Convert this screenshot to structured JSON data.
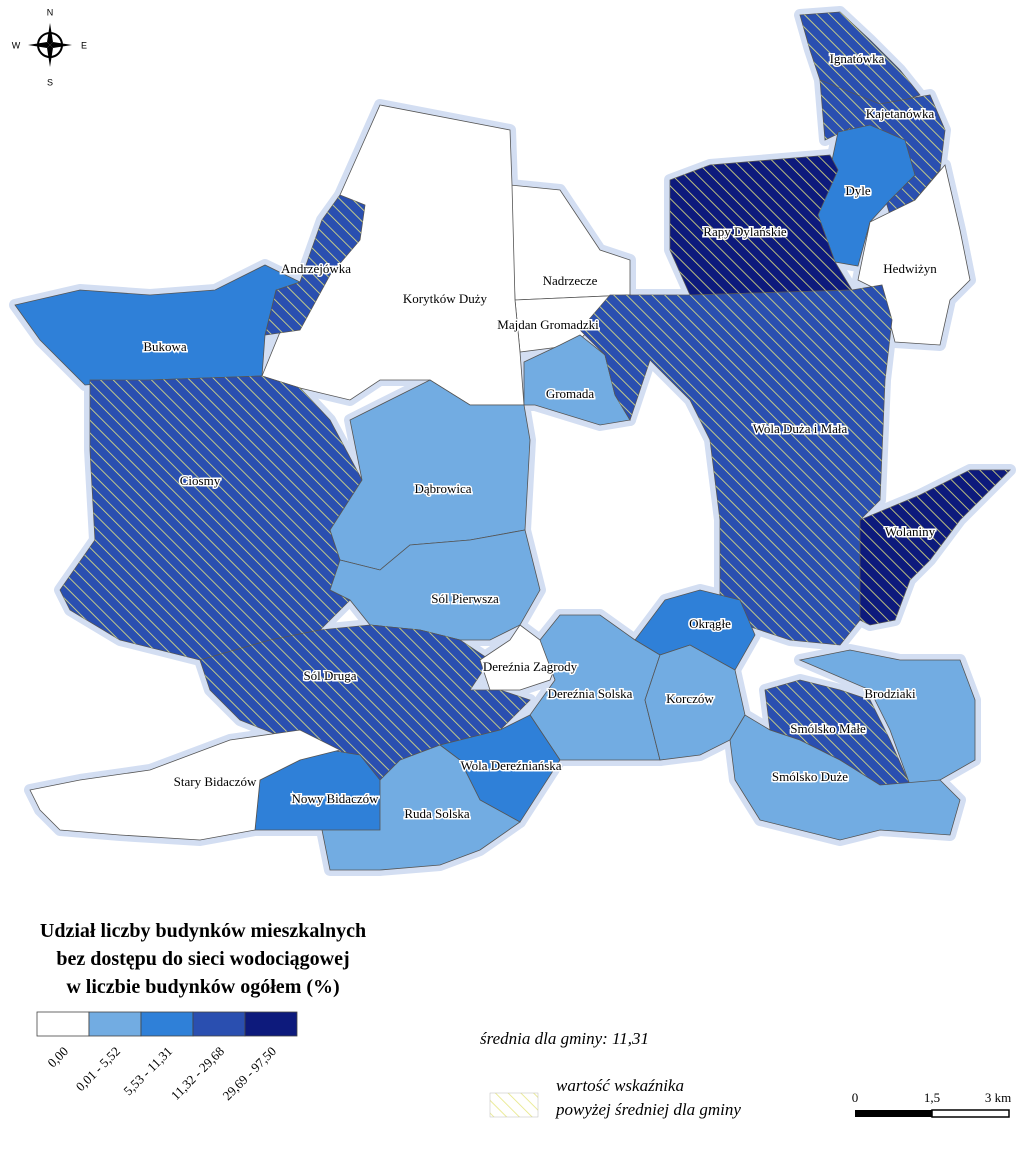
{
  "compass": {
    "north": "N",
    "south": "S",
    "west": "W",
    "east": "E"
  },
  "regions": [
    {
      "name": "Ignatówka",
      "color": "#2a4fb0",
      "hatched": true
    },
    {
      "name": "Kajetanówka",
      "color": "#2a4fb0",
      "hatched": true
    },
    {
      "name": "Dyle",
      "color": "#2f80d8",
      "hatched": false
    },
    {
      "name": "Rapy Dylańskie",
      "color": "#0d1a7c",
      "hatched": true
    },
    {
      "name": "Hedwiżyn",
      "color": "#ffffff",
      "hatched": false
    },
    {
      "name": "Nadrzecze",
      "color": "#ffffff",
      "hatched": false
    },
    {
      "name": "Majdan Gromadzki",
      "color": "#ffffff",
      "hatched": false
    },
    {
      "name": "Korytków Duży",
      "color": "#ffffff",
      "hatched": false
    },
    {
      "name": "Andrzejówka",
      "color": "#2a4fb0",
      "hatched": true
    },
    {
      "name": "Bukowa",
      "color": "#2f80d8",
      "hatched": false
    },
    {
      "name": "Gromada",
      "color": "#72ace2",
      "hatched": false
    },
    {
      "name": "Wola Duża i Mała",
      "color": "#2a4fb0",
      "hatched": true
    },
    {
      "name": "Ciosmy",
      "color": "#2a4fb0",
      "hatched": true
    },
    {
      "name": "Dąbrowica",
      "color": "#72ace2",
      "hatched": false
    },
    {
      "name": "Sól Pierwsza",
      "color": "#72ace2",
      "hatched": false
    },
    {
      "name": "Wolaniny",
      "color": "#0d1a7c",
      "hatched": true
    },
    {
      "name": "Okrągłe",
      "color": "#2f80d8",
      "hatched": false
    },
    {
      "name": "Sól Druga",
      "color": "#2a4fb0",
      "hatched": true
    },
    {
      "name": "Dereźnia Zagrody",
      "color": "#ffffff",
      "hatched": false
    },
    {
      "name": "Dereźnia Solska",
      "color": "#72ace2",
      "hatched": false
    },
    {
      "name": "Korczów",
      "color": "#72ace2",
      "hatched": false
    },
    {
      "name": "Brodziaki",
      "color": "#72ace2",
      "hatched": false
    },
    {
      "name": "Smólsko Małe",
      "color": "#2a4fb0",
      "hatched": true
    },
    {
      "name": "Smólsko Duże",
      "color": "#72ace2",
      "hatched": false
    },
    {
      "name": "Wola Dereźniańska",
      "color": "#2f80d8",
      "hatched": false
    },
    {
      "name": "Ruda Solska",
      "color": "#72ace2",
      "hatched": false
    },
    {
      "name": "Nowy Bidaczów",
      "color": "#2f80d8",
      "hatched": false
    },
    {
      "name": "Stary Bidaczów",
      "color": "#ffffff",
      "hatched": false
    }
  ],
  "legend": {
    "title": [
      "Udział liczby budynków mieszkalnych",
      "bez dostępu do sieci wodociągowej",
      "w liczbie budynków ogółem (%)"
    ],
    "classes": [
      {
        "label": "0,00",
        "color": "#ffffff"
      },
      {
        "label": "0,01 - 5,52",
        "color": "#72ace2"
      },
      {
        "label": "5,53 - 11,31",
        "color": "#2f80d8"
      },
      {
        "label": "11,32 - 29,68",
        "color": "#2a4fb0"
      },
      {
        "label": "29,69 - 97,50",
        "color": "#0d1a7c"
      }
    ],
    "mean_note": "średnia dla gminy: 11,31",
    "hatch_note": [
      "wartość wskaźnika",
      "powyżej średniej dla gminy"
    ],
    "hatch_color": "#e6e680"
  },
  "scale_bar": {
    "labels": [
      "0",
      "1,5",
      "3 km"
    ]
  }
}
